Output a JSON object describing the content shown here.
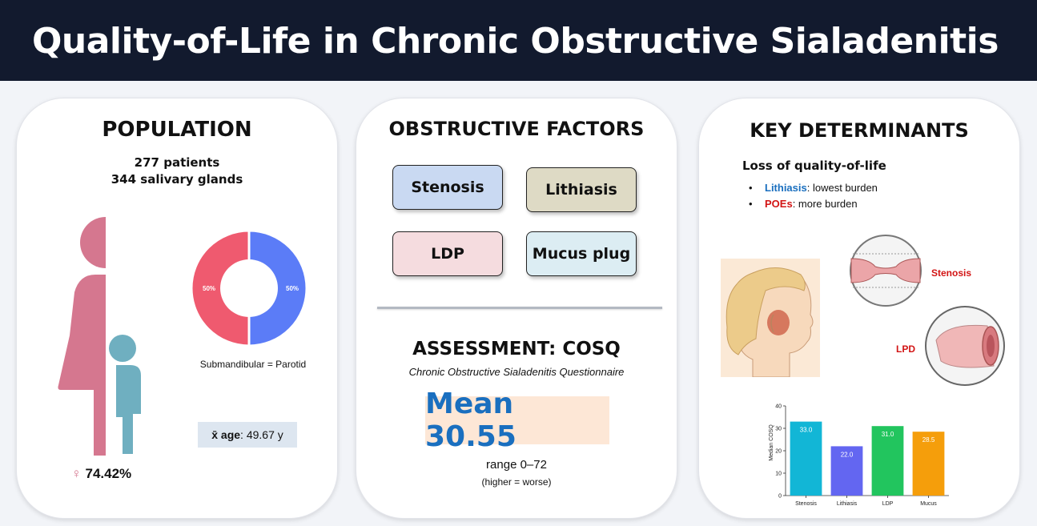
{
  "header": {
    "title": "Quality-of-Life in Chronic Obstructive Sialadenitis"
  },
  "population": {
    "title": "POPULATION",
    "patients": "277 patients",
    "glands": "344 salivary glands",
    "female_symbol": "♀",
    "female_pct": "74.42%",
    "donut": {
      "slices": [
        {
          "label": "50%",
          "value": 50,
          "color": "#ef5a6f"
        },
        {
          "label": "50%",
          "value": 50,
          "color": "#5b7cf7"
        }
      ]
    },
    "gland_ratio": "Submandibular = Parotid",
    "age_label": "x̄ age",
    "age_value": ": 49.67 y",
    "colors": {
      "female": "#d5778f",
      "child": "#6fafc0"
    }
  },
  "obstructive": {
    "title": "OBSTRUCTIVE FACTORS",
    "factors": [
      {
        "label": "Stenosis",
        "color": "#c9d9f2"
      },
      {
        "label": "Lithiasis",
        "color": "#dedac5"
      },
      {
        "label": "LDP",
        "color": "#f5dcdf"
      },
      {
        "label": "Mucus plug",
        "color": "#dcedf3"
      }
    ]
  },
  "assessment": {
    "title": "ASSESSMENT: COSQ",
    "subtitle": "Chronic Obstructive Sialadenitis Questionnaire",
    "mean": "Mean 30.55",
    "range": "range 0–72",
    "range_note": "(higher = worse)"
  },
  "determinants": {
    "title": "KEY DETERMINANTS",
    "subtitle": "Loss of quality-of-life",
    "bullets": [
      {
        "key": "Lithiasis",
        "rest": ": lowest burden",
        "color": "#1a6fbf"
      },
      {
        "key": "POEs",
        "rest": ": more burden",
        "color": "#d21414"
      }
    ],
    "stenosis_label": "Stenosis",
    "lpd_label": "LPD"
  },
  "chart_data": {
    "type": "bar",
    "categories": [
      "Stenosis",
      "Lithiasis",
      "LDP",
      "Mucus"
    ],
    "values": [
      33.0,
      22.0,
      31.0,
      28.5
    ],
    "value_labels": [
      "33.0",
      "22.0",
      "31.0",
      "28.5"
    ],
    "colors": [
      "#12b6d6",
      "#6366f1",
      "#22c55e",
      "#f59e0b"
    ],
    "ylabel": "Median COSQ",
    "ylim": [
      0,
      40
    ],
    "yticks": [
      "0",
      "10",
      "20",
      "30",
      "40"
    ]
  }
}
